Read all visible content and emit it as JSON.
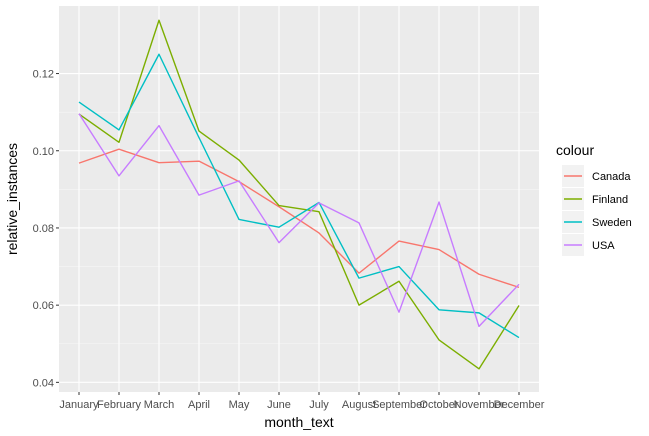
{
  "chart_data": {
    "type": "line",
    "xlabel": "month_text",
    "ylabel": "relative_instances",
    "categories": [
      "January",
      "February",
      "March",
      "April",
      "May",
      "June",
      "July",
      "August",
      "September",
      "October",
      "November",
      "December"
    ],
    "ylim": [
      0.0375,
      0.1375
    ],
    "yticks": [
      0.04,
      0.06,
      0.08,
      0.1,
      0.12
    ],
    "ytick_labels": [
      "0.04",
      "0.06",
      "0.08",
      "0.10",
      "0.12"
    ],
    "grid": true,
    "legend": {
      "title": "colour",
      "position": "right"
    },
    "series": [
      {
        "name": "Canada",
        "color": "#F8766D",
        "values": [
          0.0968,
          0.1004,
          0.0969,
          0.0973,
          0.092,
          0.0855,
          0.0787,
          0.0683,
          0.0766,
          0.0744,
          0.068,
          0.0646
        ]
      },
      {
        "name": "Finland",
        "color": "#7CAE00",
        "values": [
          0.1095,
          0.1022,
          0.1338,
          0.1051,
          0.0976,
          0.0858,
          0.0842,
          0.06,
          0.0662,
          0.051,
          0.0435,
          0.0599
        ]
      },
      {
        "name": "Sweden",
        "color": "#00BFC4",
        "values": [
          0.1126,
          0.1054,
          0.125,
          0.1034,
          0.0822,
          0.0802,
          0.0866,
          0.067,
          0.07,
          0.0588,
          0.058,
          0.0516
        ]
      },
      {
        "name": "USA",
        "color": "#C77CFF",
        "values": [
          0.1096,
          0.0935,
          0.1065,
          0.0885,
          0.0922,
          0.0762,
          0.0865,
          0.0813,
          0.0582,
          0.0867,
          0.0545,
          0.0654
        ]
      }
    ]
  }
}
